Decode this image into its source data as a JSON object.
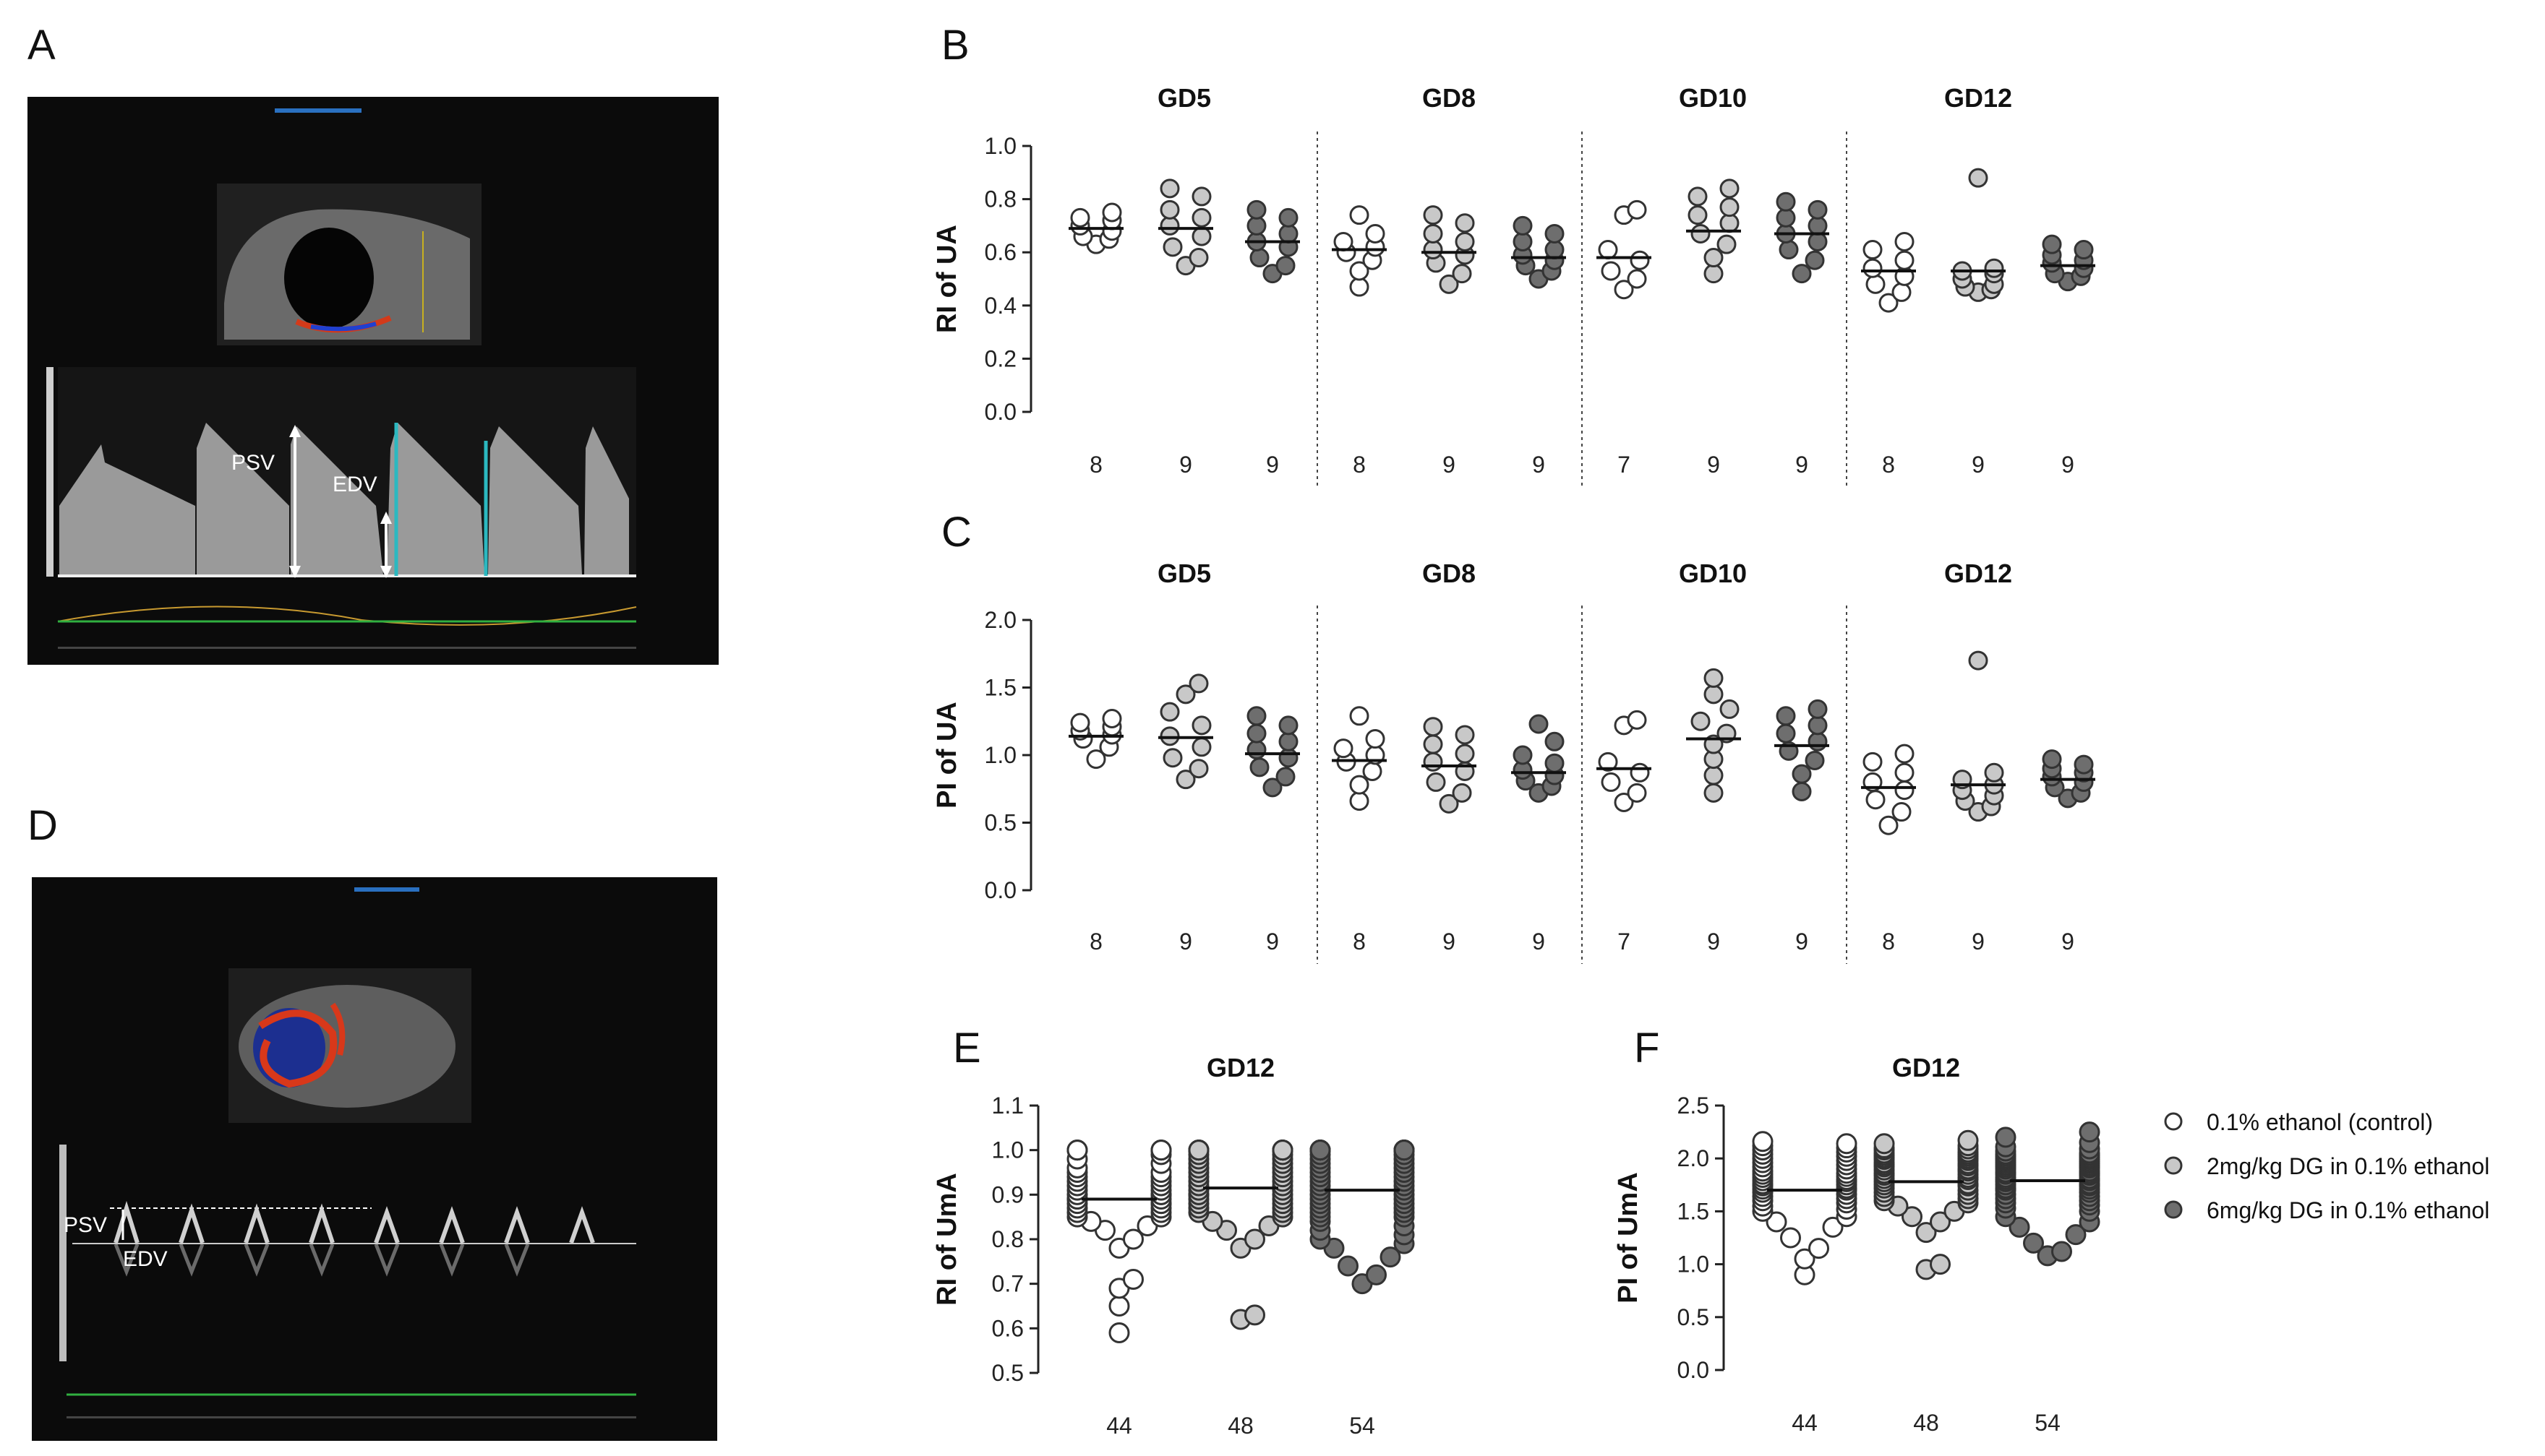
{
  "panels": {
    "a": "A",
    "b": "B",
    "c": "C",
    "d": "D",
    "e": "E",
    "f": "F"
  },
  "ultrasound_a": {
    "psv": "PSV",
    "edv": "EDV"
  },
  "ultrasound_d": {
    "psv": "PSV",
    "edv": "EDV"
  },
  "legend": [
    {
      "label": "0.1% ethanol (control)",
      "color": "#ffffff"
    },
    {
      "label": "2mg/kg DG in 0.1% ethanol",
      "color": "#c8c8c8"
    },
    {
      "label": "6mg/kg DG in 0.1% ethanol",
      "color": "#6e6e6e"
    }
  ],
  "group_colors": [
    "#ffffff",
    "#c8c8c8",
    "#6e6e6e"
  ],
  "chart_data": [
    {
      "panel": "B",
      "type": "scatter",
      "ylabel": "RI of UA",
      "ylim": [
        0.0,
        1.0
      ],
      "yticks": [
        "0.0",
        "0.2",
        "0.4",
        "0.6",
        "0.8",
        "1.0"
      ],
      "groups": [
        {
          "title": "GD5",
          "counts": [
            "8",
            "9",
            "9"
          ],
          "means": [
            0.69,
            0.69,
            0.64
          ],
          "points": [
            [
              0.63,
              0.65,
              0.68,
              0.7,
              0.72,
              0.73,
              0.75,
              0.66
            ],
            [
              0.55,
              0.58,
              0.62,
              0.66,
              0.7,
              0.73,
              0.76,
              0.81,
              0.84
            ],
            [
              0.52,
              0.55,
              0.58,
              0.62,
              0.64,
              0.67,
              0.7,
              0.73,
              0.76
            ]
          ]
        },
        {
          "title": "GD8",
          "counts": [
            "8",
            "9",
            "9"
          ],
          "means": [
            0.61,
            0.6,
            0.58
          ],
          "points": [
            [
              0.47,
              0.53,
              0.57,
              0.6,
              0.62,
              0.64,
              0.67,
              0.74
            ],
            [
              0.48,
              0.52,
              0.56,
              0.59,
              0.61,
              0.64,
              0.67,
              0.71,
              0.74
            ],
            [
              0.5,
              0.53,
              0.55,
              0.57,
              0.59,
              0.61,
              0.64,
              0.67,
              0.7
            ]
          ]
        },
        {
          "title": "GD10",
          "counts": [
            "7",
            "9",
            "9"
          ],
          "means": [
            0.58,
            0.68,
            0.67
          ],
          "points": [
            [
              0.46,
              0.5,
              0.53,
              0.57,
              0.61,
              0.74,
              0.76
            ],
            [
              0.52,
              0.58,
              0.63,
              0.67,
              0.71,
              0.74,
              0.77,
              0.81,
              0.84
            ],
            [
              0.52,
              0.57,
              0.61,
              0.64,
              0.67,
              0.7,
              0.73,
              0.76,
              0.79
            ]
          ]
        },
        {
          "title": "GD12",
          "counts": [
            "8",
            "9",
            "9"
          ],
          "means": [
            0.53,
            0.53,
            0.55
          ],
          "points": [
            [
              0.41,
              0.45,
              0.48,
              0.51,
              0.54,
              0.57,
              0.61,
              0.64
            ],
            [
              0.45,
              0.46,
              0.47,
              0.48,
              0.5,
              0.52,
              0.53,
              0.54,
              0.88
            ],
            [
              0.49,
              0.51,
              0.52,
              0.54,
              0.56,
              0.57,
              0.59,
              0.61,
              0.63
            ]
          ]
        }
      ]
    },
    {
      "panel": "C",
      "type": "scatter",
      "ylabel": "PI of UA",
      "ylim": [
        0.0,
        2.0
      ],
      "yticks": [
        "0.0",
        "0.5",
        "1.0",
        "1.5",
        "2.0"
      ],
      "groups": [
        {
          "title": "GD5",
          "counts": [
            "8",
            "9",
            "9"
          ],
          "means": [
            1.14,
            1.13,
            1.01
          ],
          "points": [
            [
              0.97,
              1.06,
              1.12,
              1.15,
              1.18,
              1.21,
              1.24,
              1.27
            ],
            [
              0.82,
              0.9,
              0.98,
              1.06,
              1.14,
              1.22,
              1.32,
              1.45,
              1.53
            ],
            [
              0.76,
              0.84,
              0.91,
              0.98,
              1.04,
              1.1,
              1.16,
              1.22,
              1.29
            ]
          ]
        },
        {
          "title": "GD8",
          "counts": [
            "8",
            "9",
            "9"
          ],
          "means": [
            0.96,
            0.92,
            0.87
          ],
          "points": [
            [
              0.66,
              0.78,
              0.88,
              0.95,
              1.0,
              1.05,
              1.12,
              1.29
            ],
            [
              0.64,
              0.72,
              0.8,
              0.88,
              0.95,
              1.01,
              1.08,
              1.15,
              1.21
            ],
            [
              0.72,
              0.77,
              0.81,
              0.85,
              0.89,
              0.94,
              1.0,
              1.1,
              1.23
            ]
          ]
        },
        {
          "title": "GD10",
          "counts": [
            "7",
            "9",
            "9"
          ],
          "means": [
            0.9,
            1.12,
            1.07
          ],
          "points": [
            [
              0.65,
              0.72,
              0.8,
              0.87,
              0.95,
              1.22,
              1.26
            ],
            [
              0.72,
              0.85,
              0.97,
              1.08,
              1.16,
              1.25,
              1.34,
              1.45,
              1.57
            ],
            [
              0.73,
              0.86,
              0.96,
              1.03,
              1.1,
              1.16,
              1.22,
              1.29,
              1.34
            ]
          ]
        },
        {
          "title": "GD12",
          "counts": [
            "8",
            "9",
            "9"
          ],
          "means": [
            0.76,
            0.78,
            0.82
          ],
          "points": [
            [
              0.48,
              0.58,
              0.67,
              0.74,
              0.8,
              0.87,
              0.95,
              1.01
            ],
            [
              0.58,
              0.62,
              0.66,
              0.7,
              0.74,
              0.78,
              0.82,
              0.87,
              1.7
            ],
            [
              0.68,
              0.72,
              0.76,
              0.8,
              0.84,
              0.87,
              0.9,
              0.93,
              0.97
            ]
          ]
        }
      ]
    },
    {
      "panel": "E",
      "type": "scatter",
      "title": "GD12",
      "ylabel": "RI of UmA",
      "ylim": [
        0.5,
        1.1
      ],
      "yticks": [
        "0.5",
        "0.6",
        "0.7",
        "0.8",
        "0.9",
        "1.0",
        "1.1"
      ],
      "counts": [
        "44",
        "48",
        "54"
      ],
      "means": [
        0.89,
        0.915,
        0.91
      ],
      "points": [
        [
          0.59,
          0.65,
          0.69,
          0.71,
          0.78,
          0.8,
          0.82,
          0.83,
          0.84,
          0.85,
          0.85,
          0.86,
          0.86,
          0.87,
          0.87,
          0.88,
          0.88,
          0.88,
          0.89,
          0.89,
          0.89,
          0.9,
          0.9,
          0.9,
          0.91,
          0.91,
          0.92,
          0.92,
          0.93,
          0.93,
          0.94,
          0.94,
          0.95,
          0.95,
          0.96,
          0.97,
          0.98,
          0.99,
          1.0,
          1.0,
          1.0,
          1.0,
          1.0,
          1.0
        ],
        [
          0.62,
          0.63,
          0.78,
          0.8,
          0.82,
          0.83,
          0.84,
          0.85,
          0.86,
          0.86,
          0.87,
          0.87,
          0.88,
          0.88,
          0.89,
          0.89,
          0.9,
          0.9,
          0.9,
          0.91,
          0.91,
          0.92,
          0.92,
          0.93,
          0.93,
          0.94,
          0.94,
          0.95,
          0.95,
          0.96,
          0.96,
          0.97,
          0.97,
          0.98,
          0.98,
          0.99,
          0.99,
          1.0,
          1.0,
          1.0,
          1.0,
          1.0,
          1.0,
          1.0,
          1.0,
          1.0,
          1.0,
          1.0
        ],
        [
          0.7,
          0.72,
          0.74,
          0.76,
          0.78,
          0.79,
          0.8,
          0.81,
          0.82,
          0.83,
          0.84,
          0.85,
          0.85,
          0.86,
          0.86,
          0.87,
          0.87,
          0.88,
          0.88,
          0.89,
          0.89,
          0.9,
          0.9,
          0.91,
          0.91,
          0.92,
          0.92,
          0.93,
          0.93,
          0.94,
          0.94,
          0.95,
          0.95,
          0.96,
          0.96,
          0.97,
          0.97,
          0.98,
          0.98,
          0.99,
          0.99,
          1.0,
          1.0,
          1.0,
          1.0,
          1.0,
          1.0,
          1.0,
          1.0,
          1.0,
          1.0,
          1.0,
          1.0,
          1.0
        ]
      ]
    },
    {
      "panel": "F",
      "type": "scatter",
      "title": "GD12",
      "ylabel": "PI of UmA",
      "ylim": [
        0.0,
        2.5
      ],
      "yticks": [
        "0.0",
        "0.5",
        "1.0",
        "1.5",
        "2.0",
        "2.5"
      ],
      "counts": [
        "44",
        "48",
        "54"
      ],
      "means": [
        1.7,
        1.78,
        1.79
      ],
      "points": [
        [
          0.9,
          1.05,
          1.15,
          1.25,
          1.35,
          1.4,
          1.45,
          1.5,
          1.52,
          1.55,
          1.58,
          1.6,
          1.62,
          1.64,
          1.66,
          1.68,
          1.7,
          1.71,
          1.72,
          1.74,
          1.75,
          1.76,
          1.78,
          1.79,
          1.8,
          1.82,
          1.83,
          1.85,
          1.86,
          1.88,
          1.9,
          1.92,
          1.94,
          1.96,
          1.98,
          2.0,
          2.02,
          2.04,
          2.06,
          2.08,
          2.1,
          2.12,
          2.14,
          2.16
        ],
        [
          0.95,
          1.0,
          1.3,
          1.4,
          1.45,
          1.5,
          1.55,
          1.58,
          1.6,
          1.62,
          1.64,
          1.66,
          1.68,
          1.7,
          1.72,
          1.74,
          1.75,
          1.76,
          1.78,
          1.8,
          1.81,
          1.82,
          1.84,
          1.85,
          1.86,
          1.88,
          1.89,
          1.9,
          1.92,
          1.93,
          1.94,
          1.95,
          1.96,
          1.98,
          1.99,
          2.0,
          2.01,
          2.02,
          2.03,
          2.04,
          2.05,
          2.06,
          2.08,
          2.09,
          2.1,
          2.12,
          2.14,
          2.17
        ],
        [
          1.08,
          1.12,
          1.2,
          1.28,
          1.35,
          1.4,
          1.45,
          1.5,
          1.53,
          1.56,
          1.58,
          1.6,
          1.62,
          1.64,
          1.66,
          1.68,
          1.7,
          1.71,
          1.72,
          1.74,
          1.75,
          1.76,
          1.78,
          1.79,
          1.8,
          1.81,
          1.82,
          1.84,
          1.85,
          1.86,
          1.87,
          1.88,
          1.9,
          1.91,
          1.92,
          1.93,
          1.94,
          1.95,
          1.96,
          1.97,
          1.98,
          1.99,
          2.0,
          2.01,
          2.02,
          2.03,
          2.04,
          2.05,
          2.07,
          2.09,
          2.11,
          2.15,
          2.2,
          2.25
        ]
      ]
    }
  ]
}
